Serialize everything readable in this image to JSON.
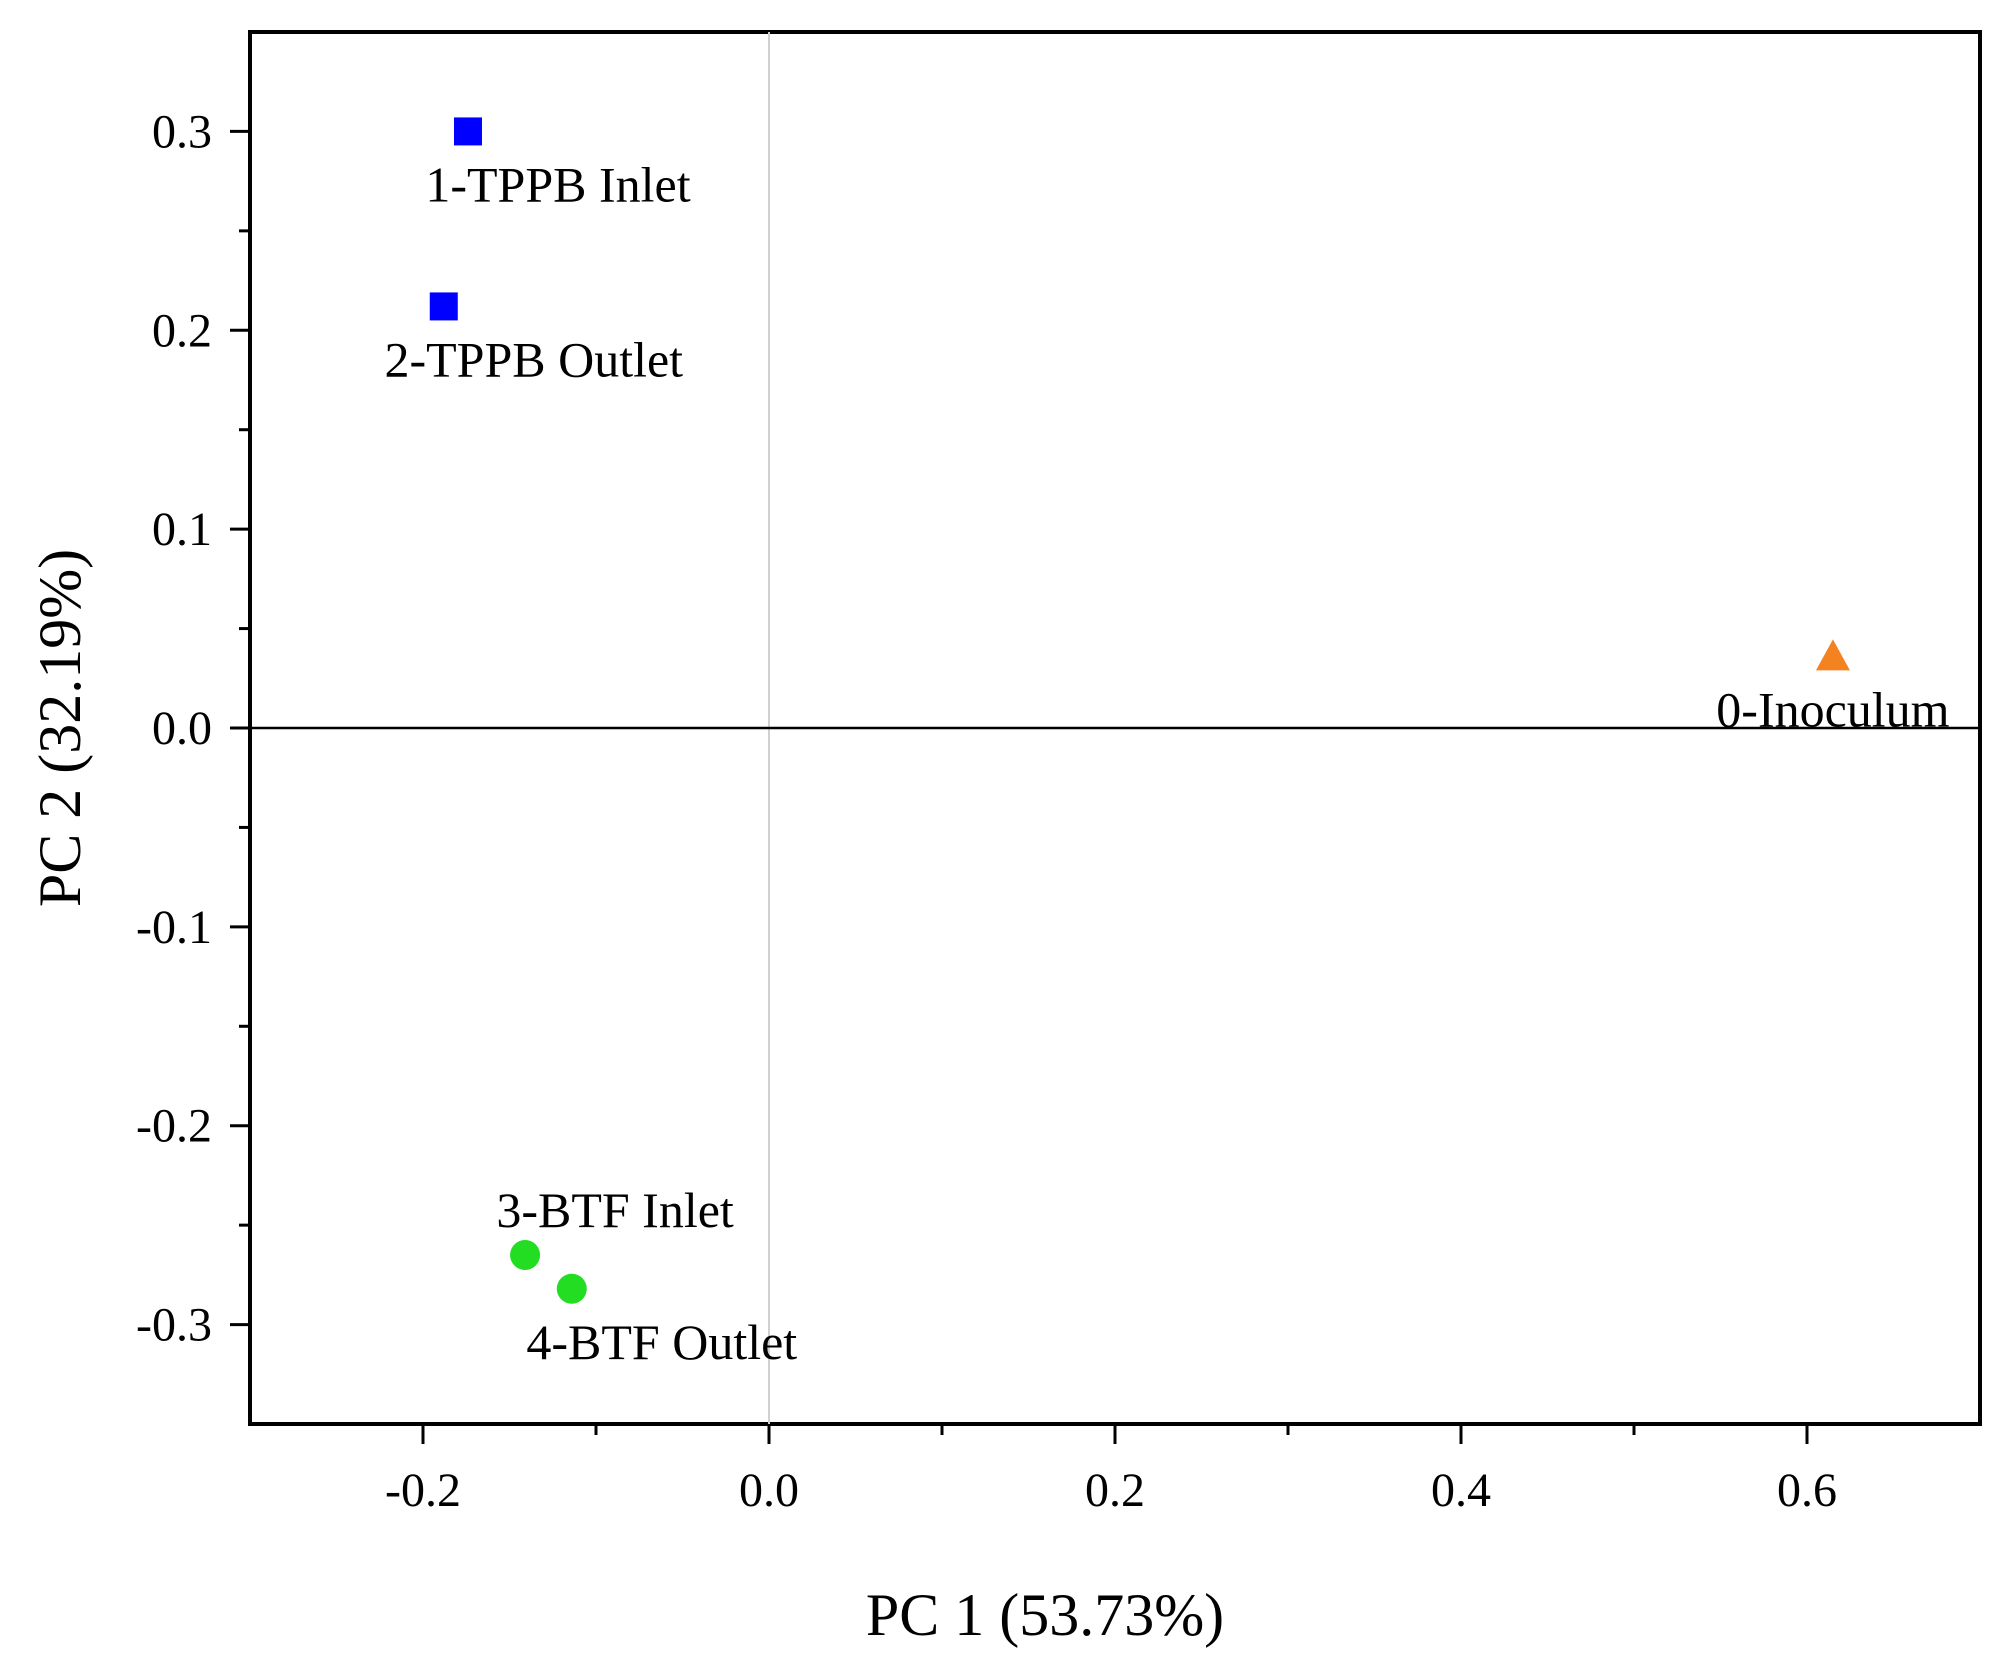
{
  "chart_data": {
    "type": "scatter",
    "title": "",
    "xlabel": "PC 1 (53.73%)",
    "ylabel": "PC 2 (32.19%)",
    "xlim": [
      -0.3,
      0.7
    ],
    "ylim": [
      -0.35,
      0.35
    ],
    "xticks": [
      -0.2,
      0.0,
      0.2,
      0.4,
      0.6
    ],
    "xtick_labels": [
      "-0.2",
      "0.0",
      "0.2",
      "0.4",
      "0.6"
    ],
    "xminor": [
      -0.1,
      0.1,
      0.3,
      0.5
    ],
    "yticks": [
      -0.3,
      -0.2,
      -0.1,
      0.0,
      0.1,
      0.2,
      0.3
    ],
    "ytick_labels": [
      "-0.3",
      "-0.2",
      "-0.1",
      "0.0",
      "0.1",
      "0.2",
      "0.3"
    ],
    "yminor": [
      -0.25,
      -0.15,
      -0.05,
      0.05,
      0.15,
      0.25
    ],
    "reference_lines": {
      "x0": true,
      "y0": true
    },
    "grid": false,
    "points": [
      {
        "label": "0-Inoculum",
        "x": 0.615,
        "y": 0.036,
        "marker": "triangle",
        "color": "#F58220",
        "label_pos": "below"
      },
      {
        "label": "1-TPPB Inlet",
        "x": -0.174,
        "y": 0.3,
        "marker": "square",
        "color": "#0000FF",
        "label_pos": "below"
      },
      {
        "label": "2-TPPB Outlet",
        "x": -0.188,
        "y": 0.212,
        "marker": "square",
        "color": "#0000FF",
        "label_pos": "below"
      },
      {
        "label": "3-BTF Inlet",
        "x": -0.141,
        "y": -0.265,
        "marker": "circle",
        "color": "#22DD22",
        "label_pos": "above"
      },
      {
        "label": "4-BTF Outlet",
        "x": -0.114,
        "y": -0.282,
        "marker": "circle",
        "color": "#22DD22",
        "label_pos": "below"
      }
    ]
  }
}
